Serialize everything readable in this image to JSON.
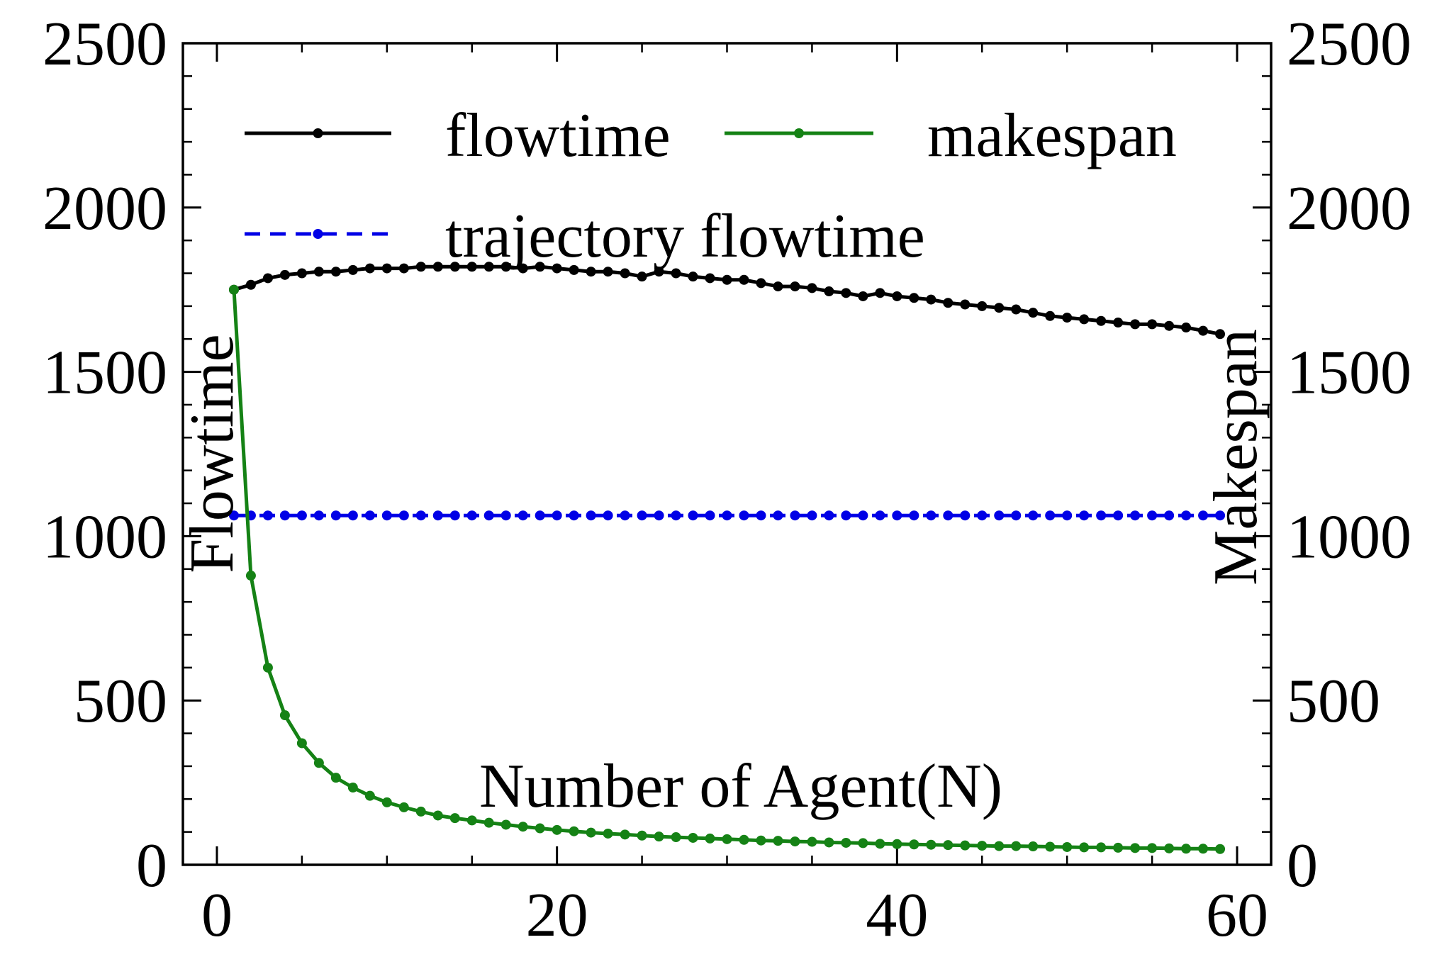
{
  "chart_data": {
    "type": "line",
    "title": "",
    "xlabel": "Number of Agent(N)",
    "ylabel": "Flowtime",
    "y2label": "Makespan",
    "xlim": [
      -2,
      62
    ],
    "ylim": [
      0,
      2500
    ],
    "y2lim": [
      0,
      2500
    ],
    "xticks": [
      0,
      20,
      40,
      60
    ],
    "yticks": [
      0,
      500,
      1000,
      1500,
      2000,
      2500
    ],
    "y2ticks": [
      0,
      500,
      1000,
      1500,
      2000,
      2500
    ],
    "xtick_labels": [
      "0",
      "20",
      "40",
      "60"
    ],
    "ytick_labels": [
      "0",
      "500",
      "1000",
      "1500",
      "2000",
      "2500"
    ],
    "y2tick_labels": [
      "0",
      "500",
      "1000",
      "1500",
      "2000",
      "2500"
    ],
    "grid": false,
    "legend_position": "top",
    "series": [
      {
        "name": "flowtime",
        "color": "#000000",
        "dash": "solid",
        "axis": "left",
        "x": [
          1,
          2,
          3,
          4,
          5,
          6,
          7,
          8,
          9,
          10,
          11,
          12,
          13,
          14,
          15,
          16,
          17,
          18,
          19,
          20,
          21,
          22,
          23,
          24,
          25,
          26,
          27,
          28,
          29,
          30,
          31,
          32,
          33,
          34,
          35,
          36,
          37,
          38,
          39,
          40,
          41,
          42,
          43,
          44,
          45,
          46,
          47,
          48,
          49,
          50,
          51,
          52,
          53,
          54,
          55,
          56,
          57,
          58,
          59
        ],
        "values": [
          1750,
          1765,
          1785,
          1795,
          1800,
          1805,
          1805,
          1810,
          1815,
          1815,
          1815,
          1820,
          1820,
          1820,
          1820,
          1820,
          1820,
          1815,
          1820,
          1815,
          1810,
          1805,
          1805,
          1800,
          1790,
          1805,
          1800,
          1790,
          1785,
          1780,
          1780,
          1770,
          1760,
          1760,
          1755,
          1745,
          1740,
          1730,
          1740,
          1730,
          1725,
          1720,
          1710,
          1705,
          1700,
          1695,
          1690,
          1680,
          1670,
          1665,
          1660,
          1655,
          1650,
          1645,
          1645,
          1640,
          1635,
          1625,
          1615
        ]
      },
      {
        "name": "makespan",
        "color": "#158215",
        "dash": "solid",
        "axis": "right",
        "x": [
          1,
          2,
          3,
          4,
          5,
          6,
          7,
          8,
          9,
          10,
          11,
          12,
          13,
          14,
          15,
          16,
          17,
          18,
          19,
          20,
          21,
          22,
          23,
          24,
          25,
          26,
          27,
          28,
          29,
          30,
          31,
          32,
          33,
          34,
          35,
          36,
          37,
          38,
          39,
          40,
          41,
          42,
          43,
          44,
          45,
          46,
          47,
          48,
          49,
          50,
          51,
          52,
          53,
          54,
          55,
          56,
          57,
          58,
          59
        ],
        "values": [
          1750,
          880,
          600,
          455,
          370,
          310,
          265,
          235,
          210,
          190,
          175,
          162,
          150,
          142,
          135,
          128,
          122,
          116,
          111,
          106,
          102,
          98,
          95,
          92,
          89,
          86,
          84,
          82,
          80,
          78,
          76,
          74,
          73,
          71,
          70,
          68,
          67,
          66,
          64,
          63,
          62,
          61,
          60,
          59,
          58,
          57,
          57,
          56,
          55,
          54,
          53,
          53,
          52,
          51,
          51,
          50,
          49,
          49,
          48
        ]
      },
      {
        "name": "trajectory flowtime",
        "color": "#0000e6",
        "dash": "dashed",
        "axis": "left",
        "x": [
          1,
          2,
          3,
          4,
          5,
          6,
          7,
          8,
          9,
          10,
          11,
          12,
          13,
          14,
          15,
          16,
          17,
          18,
          19,
          20,
          21,
          22,
          23,
          24,
          25,
          26,
          27,
          28,
          29,
          30,
          31,
          32,
          33,
          34,
          35,
          36,
          37,
          38,
          39,
          40,
          41,
          42,
          43,
          44,
          45,
          46,
          47,
          48,
          49,
          50,
          51,
          52,
          53,
          54,
          55,
          56,
          57,
          58,
          59
        ],
        "values": [
          1063,
          1063,
          1063,
          1063,
          1063,
          1063,
          1063,
          1063,
          1063,
          1063,
          1063,
          1063,
          1063,
          1063,
          1063,
          1063,
          1063,
          1063,
          1063,
          1063,
          1063,
          1063,
          1063,
          1063,
          1063,
          1063,
          1063,
          1063,
          1063,
          1063,
          1063,
          1063,
          1063,
          1063,
          1063,
          1063,
          1063,
          1063,
          1063,
          1063,
          1063,
          1063,
          1063,
          1063,
          1063,
          1063,
          1063,
          1063,
          1063,
          1063,
          1063,
          1063,
          1063,
          1063,
          1063,
          1063,
          1063,
          1063,
          1063
        ]
      }
    ]
  }
}
